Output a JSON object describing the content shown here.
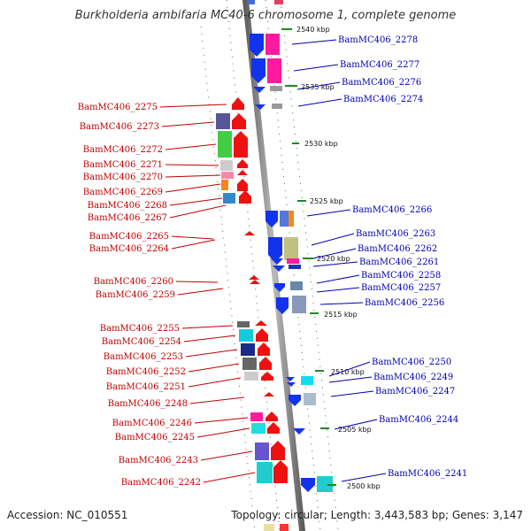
{
  "header": {
    "title": "Burkholderia ambifaria MC40-6 chromosome 1, complete genome"
  },
  "footer": {
    "accession": "Accession: NC_010551",
    "summary": "Topology: circular; Length: 3,443,583 bp; Genes: 3,147"
  },
  "ruler": {
    "ticks": [
      "2540 kbp",
      "2535 kbp",
      "2530 kbp",
      "2525 kbp",
      "2520 kbp",
      "2515 kbp",
      "2510 kbp",
      "2505 kbp",
      "2500 kbp"
    ]
  },
  "genes_left": [
    "BamMC406_2275",
    "BamMC406_2273",
    "BamMC406_2272",
    "BamMC406_2271",
    "BamMC406_2270",
    "BamMC406_2269",
    "BamMC406_2268",
    "BamMC406_2267",
    "BamMC406_2265",
    "BamMC406_2264",
    "BamMC406_2260",
    "BamMC406_2259",
    "BamMC406_2255",
    "BamMC406_2254",
    "BamMC406_2253",
    "BamMC406_2252",
    "BamMC406_2251",
    "BamMC406_2248",
    "BamMC406_2246",
    "BamMC406_2245",
    "BamMC406_2243",
    "BamMC406_2242"
  ],
  "genes_right": [
    "BamMC406_2278",
    "BamMC406_2277",
    "BamMC406_2276",
    "BamMC406_2274",
    "BamMC406_2266",
    "BamMC406_2263",
    "BamMC406_2262",
    "BamMC406_2261",
    "BamMC406_2258",
    "BamMC406_2257",
    "BamMC406_2256",
    "BamMC406_2250",
    "BamMC406_2249",
    "BamMC406_2247",
    "BamMC406_2244",
    "BamMC406_2241"
  ],
  "colors": {
    "forward_strand": "#ee1111",
    "reverse_strand": "#1111ee",
    "left_label": "#c00000",
    "right_label": "#0000b0",
    "backbone": "#888888",
    "ticks": "#228822"
  }
}
